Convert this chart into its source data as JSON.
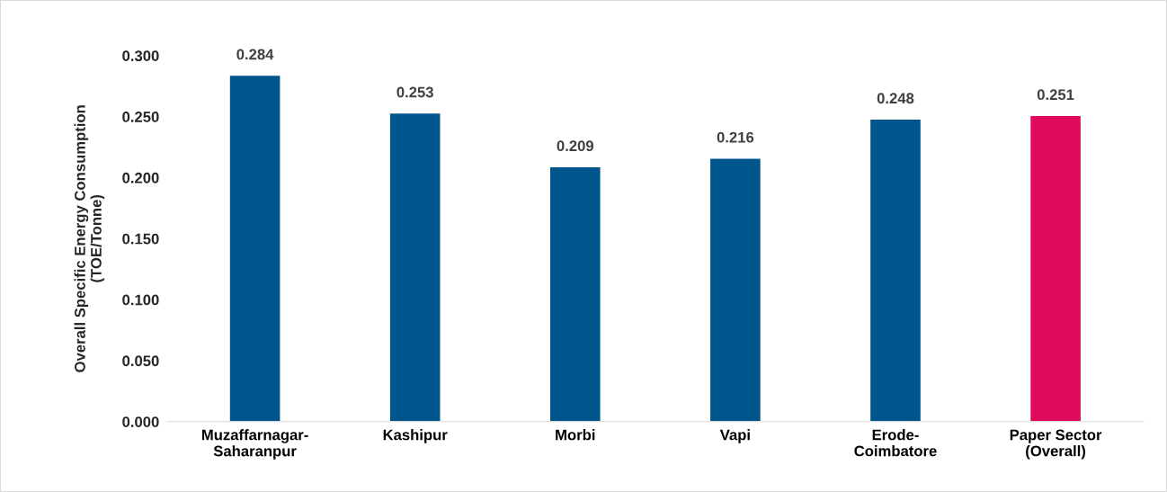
{
  "chart_data": {
    "type": "bar",
    "ylabel": "Overall Specific Energy Consumption\n(TOE/Tonne)",
    "categories": [
      "Muzaffarnagar-\nSaharanpur",
      "Kashipur",
      "Morbi",
      "Vapi",
      "Erode-\nCoimbatore",
      "Paper Sector\n(Overall)"
    ],
    "values": [
      0.284,
      0.253,
      0.209,
      0.216,
      0.248,
      0.251
    ],
    "colors": [
      "#00558c",
      "#00558c",
      "#00558c",
      "#00558c",
      "#00558c",
      "#e0095b"
    ],
    "value_labels": [
      "0.284",
      "0.253",
      "0.209",
      "0.216",
      "0.248",
      "0.251"
    ],
    "ylim": [
      0,
      0.3
    ],
    "yticks": [
      {
        "value": 0,
        "label": "0.000"
      },
      {
        "value": 0.05,
        "label": "0.050"
      },
      {
        "value": 0.1,
        "label": "0.100"
      },
      {
        "value": 0.15,
        "label": "0.150"
      },
      {
        "value": 0.2,
        "label": "0.200"
      },
      {
        "value": 0.25,
        "label": "0.250"
      },
      {
        "value": 0.3,
        "label": "0.300"
      }
    ],
    "grid": false,
    "legend": false
  }
}
